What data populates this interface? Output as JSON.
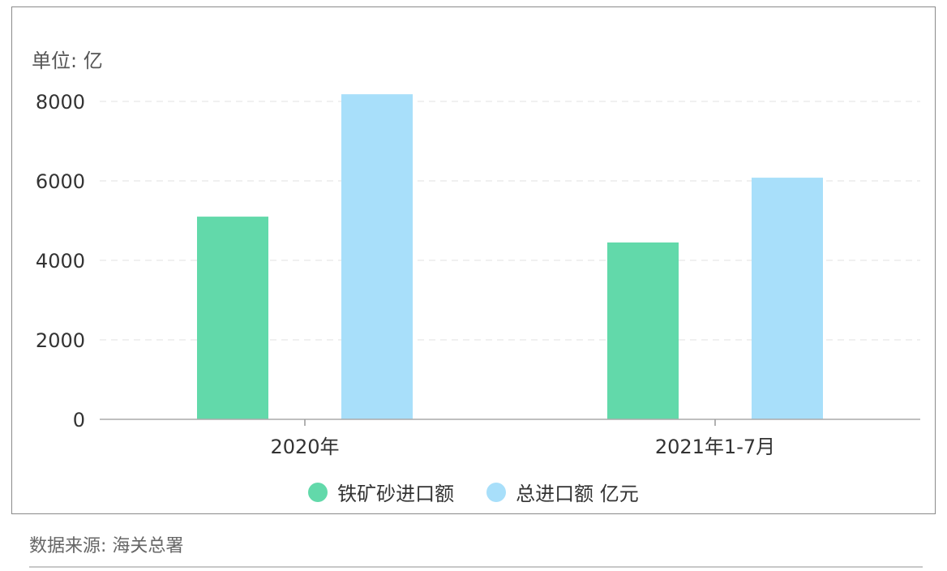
{
  "chart_data": {
    "type": "bar",
    "title": "",
    "unit_label": "单位: 亿",
    "categories": [
      "2020年",
      "2021年1-7月"
    ],
    "series": [
      {
        "name": "铁矿砂进口额",
        "values": [
          5100,
          4450
        ],
        "color": "#62d9aa"
      },
      {
        "name": "总进口额 亿元",
        "values": [
          8180,
          6080
        ],
        "color": "#a8dffa"
      }
    ],
    "ylim": [
      0,
      8000
    ],
    "yticks": [
      0,
      2000,
      4000,
      6000,
      8000
    ],
    "grid": true,
    "legend_position": "bottom-center"
  },
  "footer": {
    "source": "数据来源: 海关总署"
  }
}
